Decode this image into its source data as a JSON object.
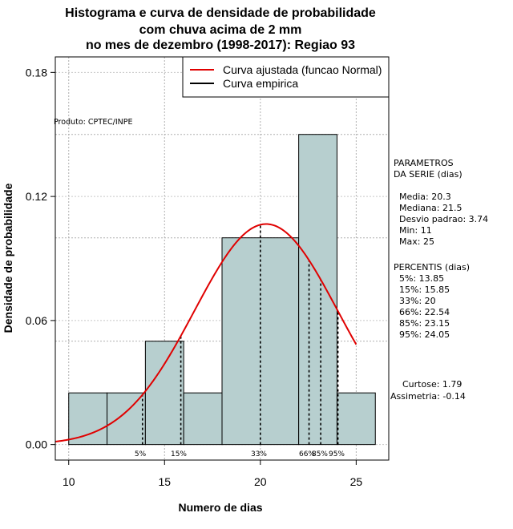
{
  "chart_data": {
    "type": "bar",
    "title_lines": [
      "Histograma e curva de densidade de probabilidade",
      "com chuva acima de 2 mm",
      "no mes de dezembro (1998-2017): Regiao 93"
    ],
    "xlabel": "Numero de dias",
    "ylabel": "Densidade de probabilidade",
    "xlim": [
      9.3,
      26.7
    ],
    "ylim": [
      -0.0075,
      0.1875
    ],
    "xticks": [
      10,
      15,
      20,
      25
    ],
    "yticks": [
      0.0,
      0.06,
      0.12,
      0.18
    ],
    "ytick_labels": [
      "0.00",
      "0.06",
      "0.12",
      "0.18"
    ],
    "grid": true,
    "bins": [
      {
        "x0": 10,
        "x1": 12,
        "density": 0.025
      },
      {
        "x0": 12,
        "x1": 14,
        "density": 0.025
      },
      {
        "x0": 14,
        "x1": 16,
        "density": 0.05
      },
      {
        "x0": 16,
        "x1": 18,
        "density": 0.025
      },
      {
        "x0": 18,
        "x1": 22,
        "density": 0.1
      },
      {
        "x0": 22,
        "x1": 24,
        "density": 0.15
      },
      {
        "x0": 24,
        "x1": 26,
        "density": 0.025
      }
    ],
    "bar_color": "#b7cfcf",
    "normal_curve": {
      "mean": 20.3,
      "sd": 3.74,
      "x_range": [
        9.3,
        25
      ],
      "color": "#e00000"
    },
    "percentile_lines": [
      {
        "label": "5%",
        "value": 13.85
      },
      {
        "label": "15%",
        "value": 15.85
      },
      {
        "label": "33%",
        "value": 20
      },
      {
        "label": "66%",
        "value": 22.54
      },
      {
        "label": "85%",
        "value": 23.15
      },
      {
        "label": "95%",
        "value": 24.05
      }
    ],
    "legend": {
      "position": "top-right",
      "entries": [
        {
          "label": "Curva ajustada (funcao Normal)",
          "color": "#e00000"
        },
        {
          "label": "Curva empirica",
          "color": "#000000"
        }
      ]
    },
    "product_note": "Produto: CPTEC/INPE",
    "side_panel": {
      "parametros_title": [
        "PARAMETROS",
        "DA SERIE (dias)"
      ],
      "parametros": [
        "Media: 20.3",
        "Mediana: 21.5",
        "Desvio padrao: 3.74",
        "Min: 11",
        "Max: 25"
      ],
      "percentis_title": "PERCENTIS (dias)",
      "percentis": [
        "5%: 13.85",
        "15%: 15.85",
        "33%: 20",
        "66%: 22.54",
        "85%: 23.15",
        "95%: 24.05"
      ],
      "curtose": "Curtose: 1.79",
      "assimetria": "Assimetria: -0.14"
    }
  }
}
